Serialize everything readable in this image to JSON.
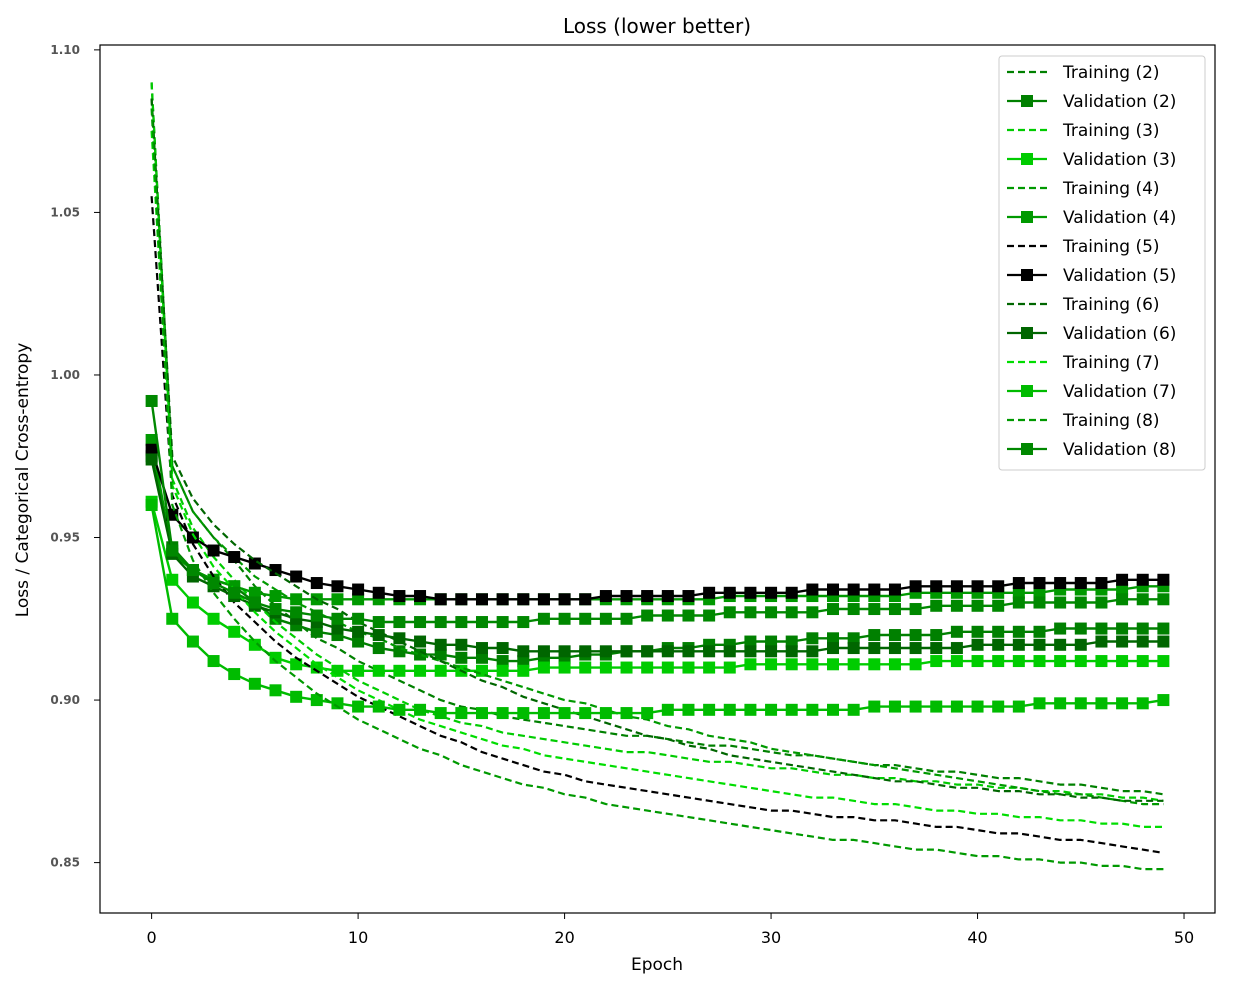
{
  "chart_data": {
    "type": "line",
    "title": "Loss (lower better)",
    "xlabel": "Epoch",
    "ylabel": "Loss / Categorical Cross-entropy",
    "xlim": [
      -2.5,
      51.5
    ],
    "ylim": [
      0.8345,
      1.1015
    ],
    "x_ticks": [
      0,
      10,
      20,
      30,
      40,
      50
    ],
    "x_tick_labels": [
      "0",
      "10",
      "20",
      "30",
      "40",
      "50"
    ],
    "y_ticks": [
      0.85,
      0.9,
      0.95,
      1.0,
      1.05,
      1.1
    ],
    "y_tick_labels": [
      "0.85",
      "0.90",
      "0.95",
      "1.00",
      "1.05",
      "1.10"
    ],
    "grid": false,
    "legend_position": "top-right",
    "series": [
      {
        "name": "Training (2)",
        "style": "dashed",
        "color": "#008000",
        "values": [
          1.09,
          0.972,
          0.958,
          0.95,
          0.943,
          0.935,
          0.929,
          0.924,
          0.919,
          0.916,
          0.912,
          0.909,
          0.906,
          0.903,
          0.9,
          0.898,
          0.897,
          0.895,
          0.894,
          0.893,
          0.892,
          0.891,
          0.89,
          0.889,
          0.889,
          0.888,
          0.887,
          0.886,
          0.886,
          0.885,
          0.884,
          0.883,
          0.883,
          0.882,
          0.881,
          0.88,
          0.88,
          0.879,
          0.878,
          0.878,
          0.877,
          0.876,
          0.876,
          0.875,
          0.874,
          0.874,
          0.873,
          0.872,
          0.872,
          0.871
        ]
      },
      {
        "name": "Validation (2)",
        "style": "solid-square",
        "color": "#008000",
        "values": [
          0.975,
          0.947,
          0.94,
          0.937,
          0.935,
          0.93,
          0.925,
          0.923,
          0.921,
          0.92,
          0.918,
          0.916,
          0.915,
          0.914,
          0.914,
          0.913,
          0.913,
          0.912,
          0.912,
          0.913,
          0.913,
          0.914,
          0.914,
          0.915,
          0.915,
          0.916,
          0.916,
          0.917,
          0.917,
          0.918,
          0.918,
          0.918,
          0.919,
          0.919,
          0.919,
          0.92,
          0.92,
          0.92,
          0.92,
          0.921,
          0.921,
          0.921,
          0.921,
          0.921,
          0.922,
          0.922,
          0.922,
          0.922,
          0.922,
          0.922
        ]
      },
      {
        "name": "Training (3)",
        "style": "dashed",
        "color": "#00cc00",
        "values": [
          1.09,
          0.968,
          0.953,
          0.944,
          0.937,
          0.93,
          0.924,
          0.919,
          0.914,
          0.91,
          0.906,
          0.903,
          0.9,
          0.897,
          0.895,
          0.893,
          0.892,
          0.89,
          0.889,
          0.888,
          0.887,
          0.886,
          0.885,
          0.884,
          0.884,
          0.883,
          0.882,
          0.881,
          0.881,
          0.88,
          0.879,
          0.879,
          0.878,
          0.877,
          0.877,
          0.876,
          0.876,
          0.875,
          0.875,
          0.874,
          0.874,
          0.873,
          0.873,
          0.872,
          0.872,
          0.871,
          0.871,
          0.87,
          0.87,
          0.869
        ]
      },
      {
        "name": "Validation (3)",
        "style": "solid-square",
        "color": "#00cc00",
        "values": [
          0.961,
          0.937,
          0.93,
          0.925,
          0.921,
          0.917,
          0.913,
          0.911,
          0.91,
          0.909,
          0.909,
          0.909,
          0.909,
          0.909,
          0.909,
          0.909,
          0.909,
          0.909,
          0.909,
          0.91,
          0.91,
          0.91,
          0.91,
          0.91,
          0.91,
          0.91,
          0.91,
          0.91,
          0.91,
          0.911,
          0.911,
          0.911,
          0.911,
          0.911,
          0.911,
          0.911,
          0.911,
          0.911,
          0.912,
          0.912,
          0.912,
          0.912,
          0.912,
          0.912,
          0.912,
          0.912,
          0.912,
          0.912,
          0.912,
          0.912
        ]
      },
      {
        "name": "Training (4)",
        "style": "dashed",
        "color": "#009900",
        "values": [
          1.085,
          0.972,
          0.958,
          0.95,
          0.944,
          0.938,
          0.934,
          0.93,
          0.927,
          0.924,
          0.921,
          0.919,
          0.916,
          0.914,
          0.912,
          0.91,
          0.908,
          0.906,
          0.904,
          0.902,
          0.9,
          0.899,
          0.897,
          0.895,
          0.894,
          0.892,
          0.891,
          0.889,
          0.888,
          0.887,
          0.885,
          0.884,
          0.883,
          0.882,
          0.881,
          0.88,
          0.879,
          0.878,
          0.877,
          0.876,
          0.875,
          0.874,
          0.873,
          0.872,
          0.871,
          0.871,
          0.87,
          0.869,
          0.868,
          0.868
        ]
      },
      {
        "name": "Validation (4)",
        "style": "solid-square",
        "color": "#009900",
        "values": [
          0.98,
          0.945,
          0.94,
          0.937,
          0.935,
          0.933,
          0.932,
          0.931,
          0.931,
          0.931,
          0.931,
          0.931,
          0.931,
          0.931,
          0.931,
          0.931,
          0.931,
          0.931,
          0.931,
          0.931,
          0.931,
          0.931,
          0.931,
          0.931,
          0.931,
          0.931,
          0.931,
          0.931,
          0.932,
          0.932,
          0.932,
          0.932,
          0.932,
          0.932,
          0.932,
          0.932,
          0.932,
          0.933,
          0.933,
          0.933,
          0.933,
          0.933,
          0.933,
          0.933,
          0.934,
          0.934,
          0.934,
          0.934,
          0.935,
          0.935
        ]
      },
      {
        "name": "Training (5)",
        "style": "dashed",
        "color": "#000000",
        "values": [
          1.055,
          0.963,
          0.948,
          0.938,
          0.93,
          0.924,
          0.918,
          0.913,
          0.909,
          0.905,
          0.901,
          0.898,
          0.895,
          0.892,
          0.889,
          0.887,
          0.884,
          0.882,
          0.88,
          0.878,
          0.877,
          0.875,
          0.874,
          0.873,
          0.872,
          0.871,
          0.87,
          0.869,
          0.868,
          0.867,
          0.866,
          0.866,
          0.865,
          0.864,
          0.864,
          0.863,
          0.863,
          0.862,
          0.861,
          0.861,
          0.86,
          0.859,
          0.859,
          0.858,
          0.857,
          0.857,
          0.856,
          0.855,
          0.854,
          0.853
        ]
      },
      {
        "name": "Validation (5)",
        "style": "solid-square",
        "color": "#000000",
        "values": [
          0.977,
          0.957,
          0.95,
          0.946,
          0.944,
          0.942,
          0.94,
          0.938,
          0.936,
          0.935,
          0.934,
          0.933,
          0.932,
          0.932,
          0.931,
          0.931,
          0.931,
          0.931,
          0.931,
          0.931,
          0.931,
          0.931,
          0.932,
          0.932,
          0.932,
          0.932,
          0.932,
          0.933,
          0.933,
          0.933,
          0.933,
          0.933,
          0.934,
          0.934,
          0.934,
          0.934,
          0.934,
          0.935,
          0.935,
          0.935,
          0.935,
          0.935,
          0.936,
          0.936,
          0.936,
          0.936,
          0.936,
          0.937,
          0.937,
          0.937
        ]
      },
      {
        "name": "Training (6)",
        "style": "dashed",
        "color": "#006600",
        "values": [
          1.085,
          0.975,
          0.962,
          0.954,
          0.948,
          0.943,
          0.939,
          0.935,
          0.931,
          0.928,
          0.924,
          0.921,
          0.918,
          0.915,
          0.912,
          0.909,
          0.906,
          0.904,
          0.901,
          0.899,
          0.897,
          0.895,
          0.893,
          0.891,
          0.889,
          0.888,
          0.886,
          0.885,
          0.883,
          0.882,
          0.881,
          0.88,
          0.879,
          0.878,
          0.877,
          0.876,
          0.875,
          0.875,
          0.874,
          0.873,
          0.873,
          0.872,
          0.872,
          0.871,
          0.871,
          0.87,
          0.87,
          0.869,
          0.869,
          0.869
        ]
      },
      {
        "name": "Validation (6)",
        "style": "solid-square",
        "color": "#006600",
        "values": [
          0.974,
          0.945,
          0.938,
          0.935,
          0.932,
          0.929,
          0.927,
          0.925,
          0.924,
          0.922,
          0.921,
          0.92,
          0.919,
          0.918,
          0.917,
          0.917,
          0.916,
          0.916,
          0.915,
          0.915,
          0.915,
          0.915,
          0.915,
          0.915,
          0.915,
          0.915,
          0.915,
          0.915,
          0.915,
          0.915,
          0.915,
          0.915,
          0.915,
          0.916,
          0.916,
          0.916,
          0.916,
          0.916,
          0.916,
          0.916,
          0.917,
          0.917,
          0.917,
          0.917,
          0.917,
          0.917,
          0.918,
          0.918,
          0.918,
          0.918
        ]
      },
      {
        "name": "Training (7)",
        "style": "dashed",
        "color": "#00dd00",
        "values": [
          1.075,
          0.966,
          0.951,
          0.941,
          0.934,
          0.927,
          0.921,
          0.916,
          0.911,
          0.907,
          0.903,
          0.9,
          0.897,
          0.894,
          0.892,
          0.89,
          0.888,
          0.886,
          0.885,
          0.883,
          0.882,
          0.881,
          0.88,
          0.879,
          0.878,
          0.877,
          0.876,
          0.875,
          0.874,
          0.873,
          0.872,
          0.871,
          0.87,
          0.87,
          0.869,
          0.868,
          0.868,
          0.867,
          0.866,
          0.866,
          0.865,
          0.865,
          0.864,
          0.864,
          0.863,
          0.863,
          0.862,
          0.862,
          0.861,
          0.861
        ]
      },
      {
        "name": "Validation (7)",
        "style": "solid-square",
        "color": "#00bb00",
        "values": [
          0.96,
          0.925,
          0.918,
          0.912,
          0.908,
          0.905,
          0.903,
          0.901,
          0.9,
          0.899,
          0.898,
          0.898,
          0.897,
          0.897,
          0.896,
          0.896,
          0.896,
          0.896,
          0.896,
          0.896,
          0.896,
          0.896,
          0.896,
          0.896,
          0.896,
          0.897,
          0.897,
          0.897,
          0.897,
          0.897,
          0.897,
          0.897,
          0.897,
          0.897,
          0.897,
          0.898,
          0.898,
          0.898,
          0.898,
          0.898,
          0.898,
          0.898,
          0.898,
          0.899,
          0.899,
          0.899,
          0.899,
          0.899,
          0.899,
          0.9
        ]
      },
      {
        "name": "Training (8)",
        "style": "dashed",
        "color": "#009900",
        "values": [
          1.082,
          0.96,
          0.943,
          0.933,
          0.925,
          0.918,
          0.912,
          0.907,
          0.902,
          0.898,
          0.894,
          0.891,
          0.888,
          0.885,
          0.883,
          0.88,
          0.878,
          0.876,
          0.874,
          0.873,
          0.871,
          0.87,
          0.868,
          0.867,
          0.866,
          0.865,
          0.864,
          0.863,
          0.862,
          0.861,
          0.86,
          0.859,
          0.858,
          0.857,
          0.857,
          0.856,
          0.855,
          0.854,
          0.854,
          0.853,
          0.852,
          0.852,
          0.851,
          0.851,
          0.85,
          0.85,
          0.849,
          0.849,
          0.848,
          0.848
        ]
      },
      {
        "name": "Validation (8)",
        "style": "solid-square",
        "color": "#008800",
        "values": [
          0.992,
          0.946,
          0.94,
          0.936,
          0.933,
          0.93,
          0.928,
          0.927,
          0.926,
          0.925,
          0.925,
          0.924,
          0.924,
          0.924,
          0.924,
          0.924,
          0.924,
          0.924,
          0.924,
          0.925,
          0.925,
          0.925,
          0.925,
          0.925,
          0.926,
          0.926,
          0.926,
          0.926,
          0.927,
          0.927,
          0.927,
          0.927,
          0.927,
          0.928,
          0.928,
          0.928,
          0.928,
          0.928,
          0.929,
          0.929,
          0.929,
          0.929,
          0.93,
          0.93,
          0.93,
          0.93,
          0.93,
          0.931,
          0.931,
          0.931
        ]
      }
    ]
  }
}
